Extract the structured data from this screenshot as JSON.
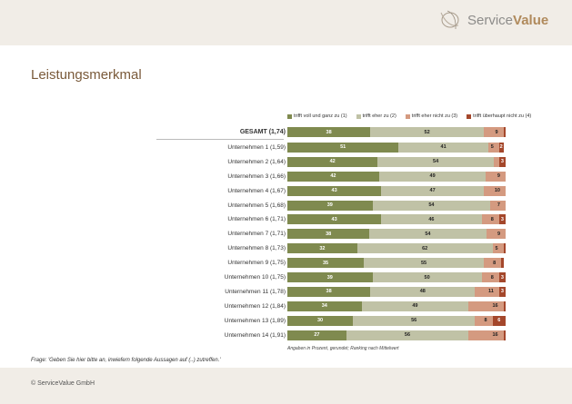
{
  "brand": {
    "name1": "Service",
    "name2": "Value"
  },
  "page_title": "Leistungsmerkmal",
  "footer": {
    "copyright": "© ServiceValue GmbH",
    "question": "Frage: 'Geben Sie hier bitte an, inwiefern folgende Aussagen auf (..) zutreffen.'",
    "note": "Angaben in Prozent, gerundet; Ranking nach Mittelwert"
  },
  "chart_data": {
    "type": "bar",
    "stacked": true,
    "orientation": "horizontal",
    "xlim": [
      0,
      100
    ],
    "legend_position": "top",
    "series_names": [
      "trifft voll und ganz zu (1)",
      "trifft eher zu (2)",
      "trifft eher nicht zu (3)",
      "trifft überhaupt nicht zu (4)"
    ],
    "colors": [
      "#7f8a4f",
      "#c0c2a6",
      "#d49a80",
      "#a4472b"
    ],
    "categories": [
      "GESAMT (1,74)",
      "Unternehmen 1 (1,59)",
      "Unternehmen 2 (1,64)",
      "Unternehmen 3 (1,66)",
      "Unternehmen 4 (1,67)",
      "Unternehmen 5 (1,68)",
      "Unternehmen 6 (1,71)",
      "Unternehmen 7 (1,71)",
      "Unternehmen 8 (1,73)",
      "Unternehmen 9 (1,75)",
      "Unternehmen 10 (1,75)",
      "Unternehmen 11 (1,78)",
      "Unternehmen 12 (1,84)",
      "Unternehmen 13 (1,89)",
      "Unternehmen 14 (1,91)"
    ],
    "values": [
      [
        38,
        52,
        9,
        1
      ],
      [
        51,
        41,
        5,
        2
      ],
      [
        42,
        54,
        1,
        3
      ],
      [
        42,
        49,
        9,
        0
      ],
      [
        43,
        47,
        10,
        0
      ],
      [
        39,
        54,
        7,
        0
      ],
      [
        43,
        46,
        8,
        3
      ],
      [
        38,
        54,
        9,
        0
      ],
      [
        32,
        62,
        5,
        1
      ],
      [
        35,
        55,
        8,
        1
      ],
      [
        39,
        50,
        8,
        3
      ],
      [
        38,
        48,
        11,
        3
      ],
      [
        34,
        49,
        16,
        1
      ],
      [
        30,
        56,
        8,
        6
      ],
      [
        27,
        56,
        16,
        1
      ]
    ]
  }
}
